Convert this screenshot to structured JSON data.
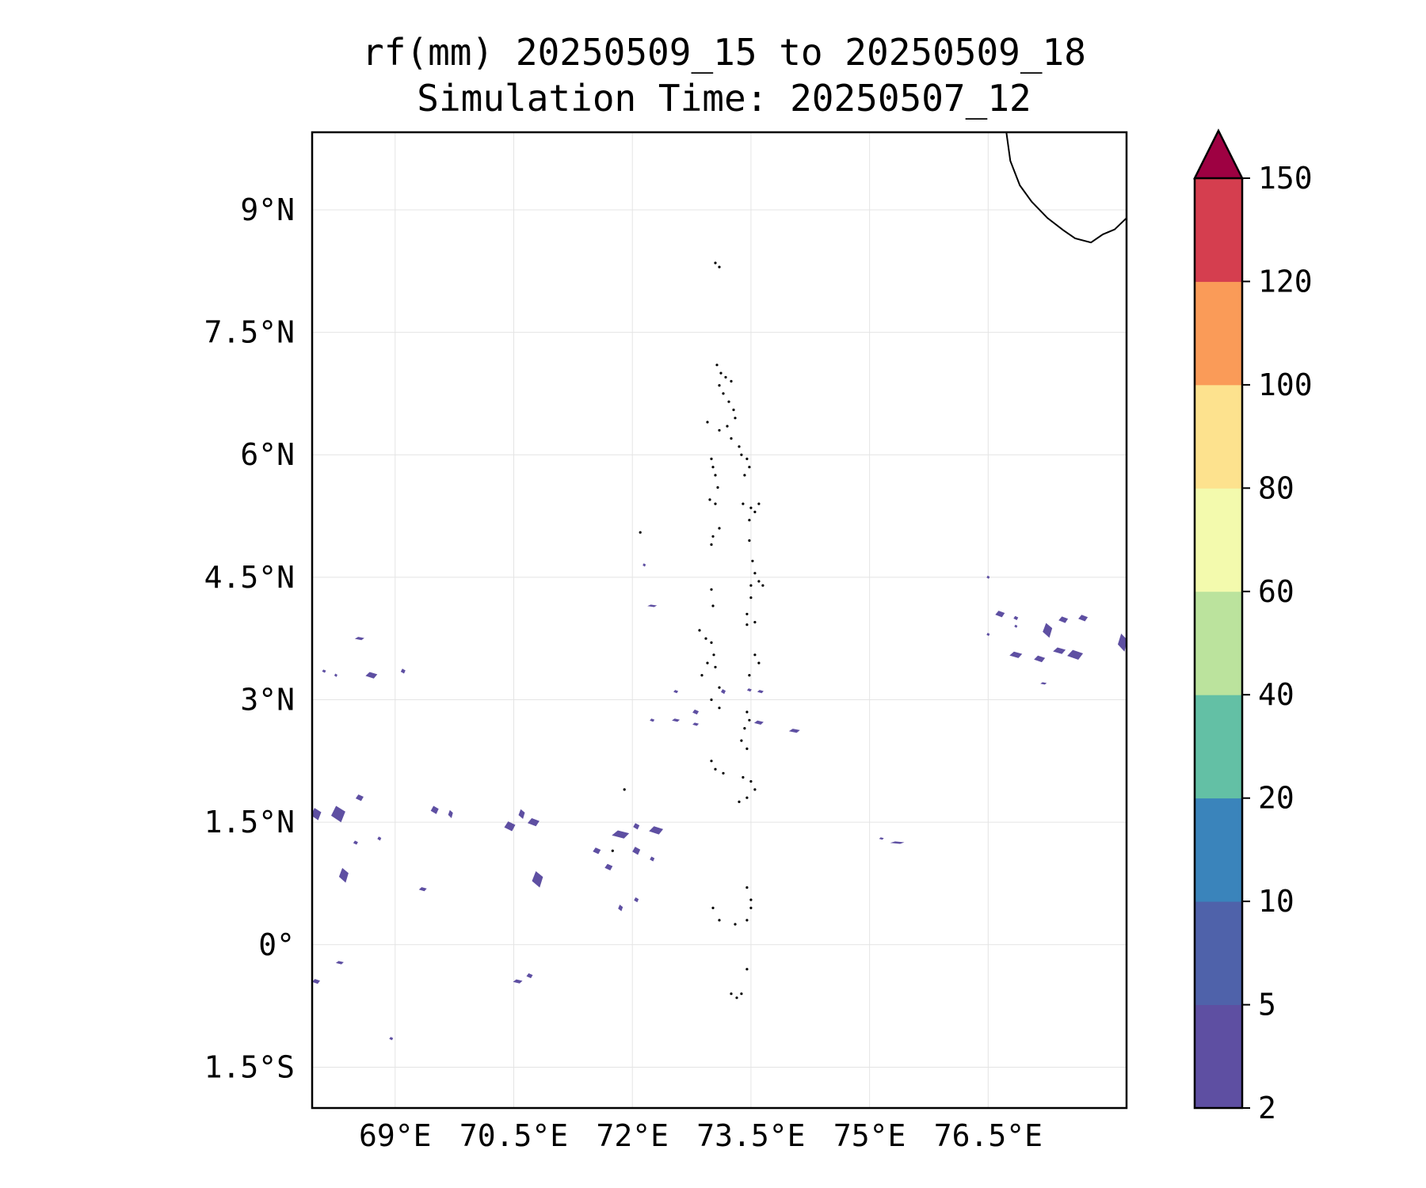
{
  "figure": {
    "title": "rf(mm) 20250509_15 to 20250509_18",
    "subtitle": "Simulation Time: 20250507_12"
  },
  "map": {
    "lon_range": [
      67.95,
      78.25
    ],
    "lat_range": [
      -2.0,
      9.95
    ],
    "x_ticks": [
      {
        "value": 69.0,
        "label": "69°E"
      },
      {
        "value": 70.5,
        "label": "70.5°E"
      },
      {
        "value": 72.0,
        "label": "72°E"
      },
      {
        "value": 73.5,
        "label": "73.5°E"
      },
      {
        "value": 75.0,
        "label": "75°E"
      },
      {
        "value": 76.5,
        "label": "76.5°E"
      }
    ],
    "y_ticks": [
      {
        "value": 9.0,
        "label": "9°N"
      },
      {
        "value": 7.5,
        "label": "7.5°N"
      },
      {
        "value": 6.0,
        "label": "6°N"
      },
      {
        "value": 4.5,
        "label": "4.5°N"
      },
      {
        "value": 3.0,
        "label": "3°N"
      },
      {
        "value": 1.5,
        "label": "1.5°N"
      },
      {
        "value": 0.0,
        "label": "0°"
      },
      {
        "value": -1.5,
        "label": "1.5°S"
      }
    ],
    "gridlines": true,
    "coastline_color": "#000000",
    "rain_color": "#5e4fa2",
    "india_coast": [
      [
        76.73,
        9.95
      ],
      [
        76.78,
        9.6
      ],
      [
        76.9,
        9.3
      ],
      [
        77.05,
        9.1
      ],
      [
        77.25,
        8.9
      ],
      [
        77.45,
        8.75
      ],
      [
        77.6,
        8.65
      ],
      [
        77.8,
        8.6
      ],
      [
        77.95,
        8.7
      ],
      [
        78.1,
        8.76
      ],
      [
        78.25,
        8.9
      ]
    ],
    "islands": [
      [
        73.05,
        8.35
      ],
      [
        73.1,
        8.3
      ],
      [
        73.07,
        7.1
      ],
      [
        73.12,
        7.0
      ],
      [
        73.18,
        6.95
      ],
      [
        73.25,
        6.9
      ],
      [
        73.1,
        6.85
      ],
      [
        73.15,
        6.75
      ],
      [
        73.22,
        6.65
      ],
      [
        73.28,
        6.55
      ],
      [
        73.3,
        6.45
      ],
      [
        73.2,
        6.35
      ],
      [
        73.1,
        6.3
      ],
      [
        73.25,
        6.2
      ],
      [
        73.35,
        6.1
      ],
      [
        73.38,
        6.0
      ],
      [
        72.95,
        6.4
      ],
      [
        73.0,
        5.95
      ],
      [
        73.02,
        5.85
      ],
      [
        73.05,
        5.75
      ],
      [
        73.08,
        5.6
      ],
      [
        73.45,
        5.95
      ],
      [
        73.48,
        5.85
      ],
      [
        73.42,
        5.75
      ],
      [
        72.98,
        5.45
      ],
      [
        73.05,
        5.4
      ],
      [
        73.4,
        5.4
      ],
      [
        73.5,
        5.35
      ],
      [
        73.6,
        5.4
      ],
      [
        73.55,
        5.3
      ],
      [
        73.48,
        5.2
      ],
      [
        73.1,
        5.1
      ],
      [
        73.02,
        5.0
      ],
      [
        73.0,
        4.9
      ],
      [
        73.48,
        4.95
      ],
      [
        73.52,
        4.7
      ],
      [
        73.55,
        4.55
      ],
      [
        73.6,
        4.45
      ],
      [
        73.65,
        4.4
      ],
      [
        73.5,
        4.4
      ],
      [
        73.0,
        4.35
      ],
      [
        73.02,
        4.15
      ],
      [
        73.5,
        4.25
      ],
      [
        73.45,
        4.05
      ],
      [
        73.55,
        3.95
      ],
      [
        73.45,
        3.92
      ],
      [
        72.85,
        3.85
      ],
      [
        72.93,
        3.75
      ],
      [
        73.0,
        3.7
      ],
      [
        73.03,
        3.55
      ],
      [
        72.95,
        3.45
      ],
      [
        73.05,
        3.4
      ],
      [
        73.55,
        3.55
      ],
      [
        73.6,
        3.45
      ],
      [
        73.48,
        3.3
      ],
      [
        72.88,
        3.3
      ],
      [
        73.1,
        3.15
      ],
      [
        73.0,
        3.0
      ],
      [
        73.1,
        2.9
      ],
      [
        73.45,
        2.85
      ],
      [
        73.48,
        2.75
      ],
      [
        73.42,
        2.65
      ],
      [
        73.38,
        2.5
      ],
      [
        73.45,
        2.4
      ],
      [
        73.0,
        2.25
      ],
      [
        73.05,
        2.15
      ],
      [
        73.15,
        2.1
      ],
      [
        73.4,
        2.05
      ],
      [
        73.5,
        2.0
      ],
      [
        73.55,
        1.9
      ],
      [
        73.45,
        1.8
      ],
      [
        73.35,
        1.75
      ],
      [
        73.45,
        0.7
      ],
      [
        73.5,
        0.55
      ],
      [
        73.5,
        0.45
      ],
      [
        73.45,
        0.3
      ],
      [
        73.3,
        0.25
      ],
      [
        73.1,
        0.3
      ],
      [
        73.02,
        0.45
      ],
      [
        73.25,
        -0.6
      ],
      [
        73.32,
        -0.65
      ],
      [
        73.38,
        -0.6
      ],
      [
        73.45,
        -0.3
      ],
      [
        72.1,
        5.05
      ],
      [
        71.9,
        1.9
      ],
      [
        71.75,
        1.15
      ]
    ],
    "rain_cells": [
      {
        "lon": 68.55,
        "lat": 3.75,
        "w": 0.12,
        "h": 0.04
      },
      {
        "lon": 68.7,
        "lat": 3.3,
        "w": 0.15,
        "h": 0.08
      },
      {
        "lon": 68.1,
        "lat": 3.35,
        "w": 0.05,
        "h": 0.04
      },
      {
        "lon": 68.25,
        "lat": 3.3,
        "w": 0.04,
        "h": 0.04
      },
      {
        "lon": 69.1,
        "lat": 3.35,
        "w": 0.06,
        "h": 0.06
      },
      {
        "lon": 68.0,
        "lat": 1.6,
        "w": 0.13,
        "h": 0.15
      },
      {
        "lon": 68.28,
        "lat": 1.6,
        "w": 0.18,
        "h": 0.2
      },
      {
        "lon": 68.55,
        "lat": 1.8,
        "w": 0.1,
        "h": 0.08
      },
      {
        "lon": 68.35,
        "lat": 0.85,
        "w": 0.12,
        "h": 0.18
      },
      {
        "lon": 68.5,
        "lat": 1.25,
        "w": 0.06,
        "h": 0.05
      },
      {
        "lon": 68.8,
        "lat": 1.3,
        "w": 0.05,
        "h": 0.05
      },
      {
        "lon": 69.5,
        "lat": 1.65,
        "w": 0.1,
        "h": 0.1
      },
      {
        "lon": 69.7,
        "lat": 1.6,
        "w": 0.06,
        "h": 0.1
      },
      {
        "lon": 69.35,
        "lat": 0.68,
        "w": 0.1,
        "h": 0.05
      },
      {
        "lon": 70.45,
        "lat": 1.45,
        "w": 0.14,
        "h": 0.12
      },
      {
        "lon": 70.6,
        "lat": 1.6,
        "w": 0.08,
        "h": 0.12
      },
      {
        "lon": 70.75,
        "lat": 1.5,
        "w": 0.15,
        "h": 0.1
      },
      {
        "lon": 70.8,
        "lat": 0.8,
        "w": 0.14,
        "h": 0.2
      },
      {
        "lon": 71.85,
        "lat": 1.35,
        "w": 0.22,
        "h": 0.1
      },
      {
        "lon": 71.55,
        "lat": 1.15,
        "w": 0.1,
        "h": 0.08
      },
      {
        "lon": 71.7,
        "lat": 0.95,
        "w": 0.1,
        "h": 0.08
      },
      {
        "lon": 72.05,
        "lat": 1.45,
        "w": 0.08,
        "h": 0.08
      },
      {
        "lon": 72.05,
        "lat": 1.15,
        "w": 0.1,
        "h": 0.1
      },
      {
        "lon": 72.3,
        "lat": 1.4,
        "w": 0.18,
        "h": 0.1
      },
      {
        "lon": 72.25,
        "lat": 1.05,
        "w": 0.06,
        "h": 0.06
      },
      {
        "lon": 71.85,
        "lat": 0.45,
        "w": 0.06,
        "h": 0.08
      },
      {
        "lon": 72.05,
        "lat": 0.55,
        "w": 0.06,
        "h": 0.06
      },
      {
        "lon": 72.55,
        "lat": 3.1,
        "w": 0.06,
        "h": 0.04
      },
      {
        "lon": 72.25,
        "lat": 2.75,
        "w": 0.06,
        "h": 0.04
      },
      {
        "lon": 72.55,
        "lat": 2.75,
        "w": 0.1,
        "h": 0.04
      },
      {
        "lon": 72.8,
        "lat": 2.85,
        "w": 0.08,
        "h": 0.06
      },
      {
        "lon": 72.8,
        "lat": 2.7,
        "w": 0.08,
        "h": 0.04
      },
      {
        "lon": 73.15,
        "lat": 3.1,
        "w": 0.06,
        "h": 0.06
      },
      {
        "lon": 73.48,
        "lat": 3.12,
        "w": 0.06,
        "h": 0.04
      },
      {
        "lon": 73.62,
        "lat": 3.1,
        "w": 0.08,
        "h": 0.04
      },
      {
        "lon": 73.6,
        "lat": 2.72,
        "w": 0.12,
        "h": 0.05
      },
      {
        "lon": 74.05,
        "lat": 2.62,
        "w": 0.14,
        "h": 0.05
      },
      {
        "lon": 72.25,
        "lat": 4.15,
        "w": 0.12,
        "h": 0.03
      },
      {
        "lon": 72.15,
        "lat": 4.65,
        "w": 0.04,
        "h": 0.04
      },
      {
        "lon": 70.55,
        "lat": -0.45,
        "w": 0.12,
        "h": 0.05
      },
      {
        "lon": 70.7,
        "lat": -0.38,
        "w": 0.08,
        "h": 0.06
      },
      {
        "lon": 68.0,
        "lat": -0.45,
        "w": 0.1,
        "h": 0.06
      },
      {
        "lon": 68.3,
        "lat": -0.22,
        "w": 0.1,
        "h": 0.04
      },
      {
        "lon": 68.95,
        "lat": -1.15,
        "w": 0.05,
        "h": 0.04
      },
      {
        "lon": 75.15,
        "lat": 1.3,
        "w": 0.06,
        "h": 0.03
      },
      {
        "lon": 75.35,
        "lat": 1.25,
        "w": 0.18,
        "h": 0.03
      },
      {
        "lon": 76.5,
        "lat": 4.5,
        "w": 0.04,
        "h": 0.04
      },
      {
        "lon": 76.65,
        "lat": 4.05,
        "w": 0.12,
        "h": 0.08
      },
      {
        "lon": 76.85,
        "lat": 4.0,
        "w": 0.06,
        "h": 0.05
      },
      {
        "lon": 77.25,
        "lat": 3.85,
        "w": 0.12,
        "h": 0.18
      },
      {
        "lon": 77.45,
        "lat": 3.98,
        "w": 0.12,
        "h": 0.08
      },
      {
        "lon": 77.7,
        "lat": 4.0,
        "w": 0.12,
        "h": 0.08
      },
      {
        "lon": 77.6,
        "lat": 3.55,
        "w": 0.2,
        "h": 0.12
      },
      {
        "lon": 78.2,
        "lat": 3.7,
        "w": 0.12,
        "h": 0.22
      },
      {
        "lon": 77.4,
        "lat": 3.6,
        "w": 0.16,
        "h": 0.08
      },
      {
        "lon": 76.85,
        "lat": 3.55,
        "w": 0.16,
        "h": 0.08
      },
      {
        "lon": 77.15,
        "lat": 3.5,
        "w": 0.14,
        "h": 0.08
      },
      {
        "lon": 76.5,
        "lat": 3.8,
        "w": 0.04,
        "h": 0.04
      },
      {
        "lon": 77.2,
        "lat": 3.2,
        "w": 0.08,
        "h": 0.03
      },
      {
        "lon": 76.85,
        "lat": 3.9,
        "w": 0.04,
        "h": 0.04
      }
    ]
  },
  "colorbar": {
    "levels": [
      "2",
      "5",
      "10",
      "20",
      "40",
      "60",
      "80",
      "100",
      "120",
      "150"
    ],
    "colors": [
      "#5e4fa2",
      "#4f62aa",
      "#3a84bb",
      "#63c0a5",
      "#bbe39d",
      "#f3faad",
      "#fde28e",
      "#fa9b58",
      "#d53e4f"
    ],
    "extend_color": "#9e0142",
    "extend": "max"
  }
}
